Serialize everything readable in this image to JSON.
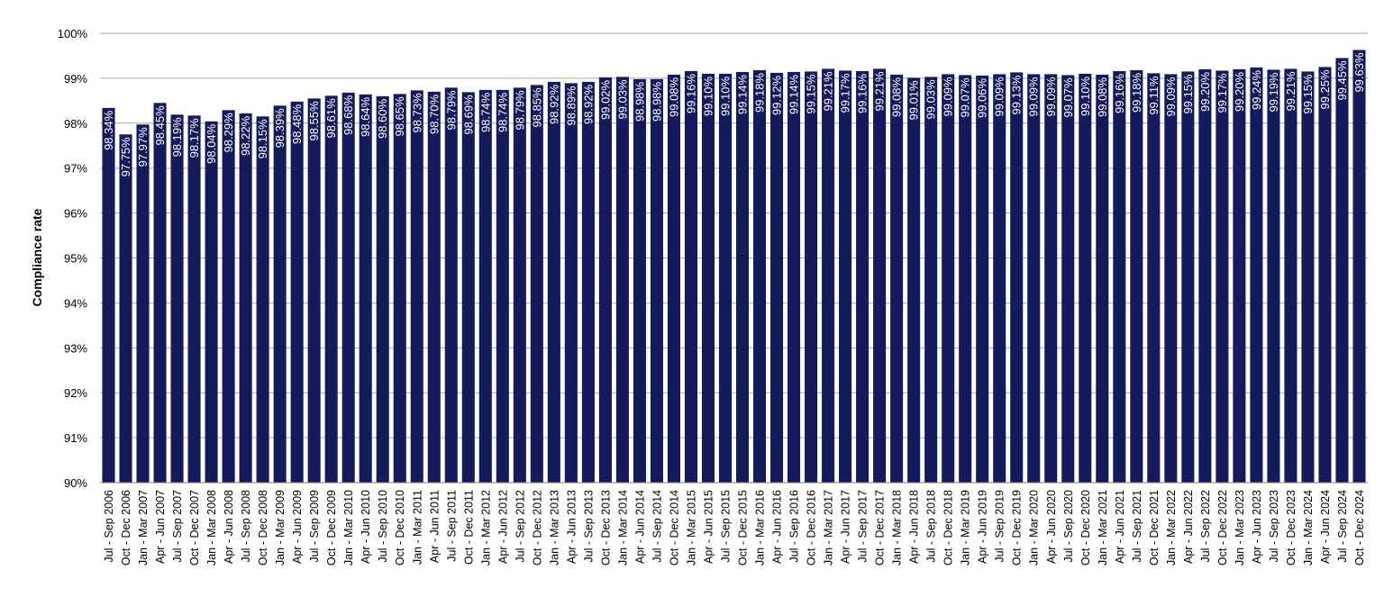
{
  "chart_data": {
    "type": "bar",
    "title": "",
    "xlabel": "",
    "ylabel": "Compliance rate",
    "ylim": [
      90,
      100
    ],
    "y_ticks": [
      "90%",
      "91%",
      "92%",
      "93%",
      "94%",
      "95%",
      "96%",
      "97%",
      "98%",
      "99%",
      "100%"
    ],
    "grid": true,
    "legend": "none",
    "bar_color": "#141B5C",
    "categories": [
      "Jul - Sep 2006",
      "Oct - Dec 2006",
      "Jan - Mar 2007",
      "Apr - Jun 2007",
      "Jul - Sep 2007",
      "Oct - Dec 2007",
      "Jan - Mar 2008",
      "Apr - Jun 2008",
      "Jul - Sep 2008",
      "Oct - Dec 2008",
      "Jan - Mar 2009",
      "Apr - Jun 2009",
      "Jul - Sep 2009",
      "Oct - Dec 2009",
      "Jan - Mar 2010",
      "Apr - Jun 2010",
      "Jul - Sep 2010",
      "Oct - Dec 2010",
      "Jan - Mar 2011",
      "Apr - Jun 2011",
      "Jul - Sep 2011",
      "Oct - Dec 2011",
      "Jan - Mar 2012",
      "Apr - Jun 2012",
      "Jul - Sep 2012",
      "Oct - Dec 2012",
      "Jan - Mar 2013",
      "Apr - Jun 2013",
      "Jul - Sep 2013",
      "Oct - Dec 2013",
      "Jan - Mar 2014",
      "Apr - Jun 2014",
      "Jul - Sep 2014",
      "Oct - Dec 2014",
      "Jan - Mar 2015",
      "Apr - Jun 2015",
      "Jul - Sep 2015",
      "Oct - Dec 2015",
      "Jan - Mar 2016",
      "Apr - Jun 2016",
      "Jul - Sep 2016",
      "Oct - Dec 2016",
      "Jan - Mar 2017",
      "Apr - Jun 2017",
      "Jul - Sep 2017",
      "Oct - Dec 2017",
      "Jan - Mar 2018",
      "Apr - Jun 2018",
      "Jul - Sep 2018",
      "Oct - Dec 2018",
      "Jan - Mar 2019",
      "Apr - Jun 2019",
      "Jul - Sep 2019",
      "Oct - Dec 2019",
      "Jan - Mar 2020",
      "Apr - Jun 2020",
      "Jul - Sep 2020",
      "Oct - Dec 2020",
      "Jan - Mar 2021",
      "Apr - Jun 2021",
      "Jul - Sep 2021",
      "Oct - Dec 2021",
      "Jan - Mar 2022",
      "Apr - Jun 2022",
      "Jul - Sep 2022",
      "Oct - Dec 2022",
      "Jan - Mar 2023",
      "Apr - Jun 2023",
      "Jul - Sep 2023",
      "Oct - Dec 2023",
      "Jan - Mar 2024",
      "Apr - Jun 2024",
      "Jul - Sep 2024",
      "Oct - Dec 2024"
    ],
    "values": [
      98.34,
      97.75,
      97.97,
      98.45,
      98.19,
      98.17,
      98.04,
      98.29,
      98.22,
      98.15,
      98.39,
      98.48,
      98.55,
      98.61,
      98.68,
      98.64,
      98.6,
      98.65,
      98.73,
      98.7,
      98.79,
      98.69,
      98.74,
      98.74,
      98.79,
      98.85,
      98.92,
      98.89,
      98.92,
      99.02,
      99.03,
      98.98,
      98.98,
      99.08,
      99.16,
      99.1,
      99.1,
      99.14,
      99.18,
      99.12,
      99.14,
      99.15,
      99.21,
      99.17,
      99.16,
      99.21,
      99.08,
      99.01,
      99.03,
      99.09,
      99.07,
      99.06,
      99.09,
      99.13,
      99.09,
      99.09,
      99.07,
      99.1,
      99.08,
      99.16,
      99.18,
      99.11,
      99.09,
      99.15,
      99.2,
      99.17,
      99.2,
      99.24,
      99.19,
      99.21,
      99.15,
      99.25,
      99.45,
      99.63
    ],
    "data_labels": [
      "98.34%",
      "97.75%",
      "97.97%",
      "98.45%",
      "98.19%",
      "98.17%",
      "98.04%",
      "98.29%",
      "98.22%",
      "98.15%",
      "98.39%",
      "98.48%",
      "98.55%",
      "98.61%",
      "98.68%",
      "98.64%",
      "98.60%",
      "98.65%",
      "98.73%",
      "98.70%",
      "98.79%",
      "98.69%",
      "98.74%",
      "98.74%",
      "98.79%",
      "98.85%",
      "98.92%",
      "98.89%",
      "98.92%",
      "99.02%",
      "99.03%",
      "98.98%",
      "98.98%",
      "99.08%",
      "99.16%",
      "99.10%",
      "99.10%",
      "99.14%",
      "99.18%",
      "99.12%",
      "99.14%",
      "99.15%",
      "99.21%",
      "99.17%",
      "99.16%",
      "99.21%",
      "99.08%",
      "99.01%",
      "99.03%",
      "99.09%",
      "99.07%",
      "99.06%",
      "99.09%",
      "99.13%",
      "99.09%",
      "99.09%",
      "99.07%",
      "99.10%",
      "99.08%",
      "99.16%",
      "99.18%",
      "99.11%",
      "99.09%",
      "99.15%",
      "99.20%",
      "99.17%",
      "99.20%",
      "99.24%",
      "99.19%",
      "99.21%",
      "99.15%",
      "99.25%",
      "99.45%",
      "99.63%"
    ]
  }
}
